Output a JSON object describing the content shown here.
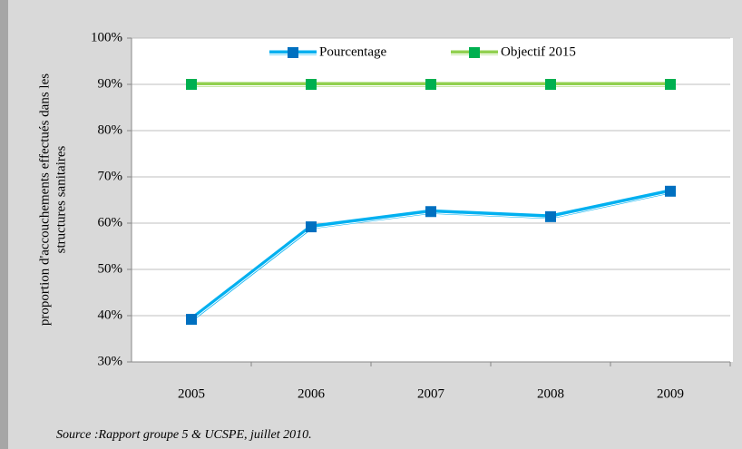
{
  "chart_data": {
    "type": "line",
    "y_label": [
      "proportion d'accouchements effectués dans les",
      "structures sanitaires"
    ],
    "categories": [
      "2005",
      "2006",
      "2007",
      "2008",
      "2009"
    ],
    "series": [
      {
        "name": "Pourcentage",
        "color": "#00b0f0",
        "marker_color": "#0070c0",
        "values": [
          39.2,
          59.2,
          62.5,
          61.4,
          66.9
        ]
      },
      {
        "name": "Objectif 2015",
        "color": "#92d050",
        "marker_color": "#00b050",
        "values": [
          90,
          90,
          90,
          90,
          90
        ]
      }
    ],
    "ylim": [
      30,
      100
    ],
    "yticks": [
      {
        "value": 30,
        "label": "30%"
      },
      {
        "value": 40,
        "label": "40%"
      },
      {
        "value": 50,
        "label": "50%"
      },
      {
        "value": 60,
        "label": "60%"
      },
      {
        "value": 70,
        "label": "70%"
      },
      {
        "value": 80,
        "label": "80%"
      },
      {
        "value": 90,
        "label": "90%"
      },
      {
        "value": 100,
        "label": "100%"
      }
    ],
    "grid": true,
    "legend": "top",
    "source": "Source :Rapport groupe 5 & UCSPE, juillet 2010."
  }
}
